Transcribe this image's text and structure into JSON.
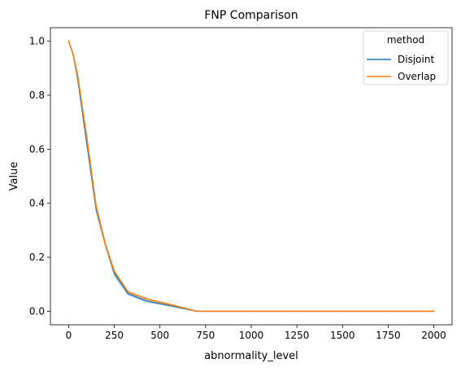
{
  "chart_data": {
    "type": "line",
    "title": "FNP Comparison",
    "xlabel": "abnormality_level",
    "ylabel": "Value",
    "xlim": [
      -100,
      2100
    ],
    "ylim": [
      -0.05,
      1.05
    ],
    "xticks": [
      0,
      250,
      500,
      750,
      1000,
      1250,
      1500,
      1750,
      2000
    ],
    "yticks": [
      0.0,
      0.2,
      0.4,
      0.6,
      0.8,
      1.0
    ],
    "grid": false,
    "legend": {
      "title": "method",
      "placement": "upper-right"
    },
    "x": [
      0,
      25,
      50,
      100,
      150,
      200,
      250,
      325,
      425,
      575,
      700,
      1000,
      1500,
      2000
    ],
    "series": [
      {
        "name": "Disjoint",
        "color": "#1f77b4",
        "values": [
          1.0,
          0.95,
          0.86,
          0.62,
          0.38,
          0.25,
          0.14,
          0.065,
          0.038,
          0.018,
          0.0,
          0.0,
          0.0,
          0.0
        ],
        "band_lower": [
          1.0,
          0.94,
          0.84,
          0.6,
          0.36,
          0.235,
          0.125,
          0.058,
          0.032,
          0.014,
          0.0,
          0.0,
          0.0,
          0.0
        ],
        "band_upper": [
          1.0,
          0.96,
          0.88,
          0.645,
          0.4,
          0.265,
          0.15,
          0.072,
          0.044,
          0.022,
          0.0,
          0.0,
          0.0,
          0.0
        ]
      },
      {
        "name": "Overlap",
        "color": "#ff7f0e",
        "values": [
          1.0,
          0.95,
          0.87,
          0.64,
          0.39,
          0.25,
          0.148,
          0.072,
          0.046,
          0.022,
          0.0,
          0.0,
          0.0,
          0.0
        ],
        "band_lower": [
          1.0,
          0.94,
          0.85,
          0.62,
          0.37,
          0.24,
          0.14,
          0.066,
          0.04,
          0.018,
          0.0,
          0.0,
          0.0,
          0.0
        ],
        "band_upper": [
          1.0,
          0.96,
          0.89,
          0.66,
          0.41,
          0.265,
          0.158,
          0.078,
          0.052,
          0.026,
          0.0,
          0.0,
          0.0,
          0.0
        ]
      }
    ]
  }
}
